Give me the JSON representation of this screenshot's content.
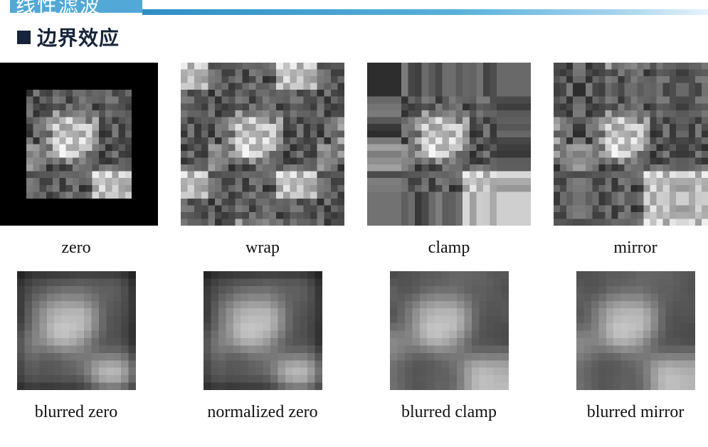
{
  "header": {
    "title": "线性滤波",
    "accent_color": "#52a8d6"
  },
  "section": {
    "title": "边界效应",
    "bullet_color": "#16233a"
  },
  "panels_row1": [
    {
      "caption": "zero",
      "mode": "zero"
    },
    {
      "caption": "wrap",
      "mode": "wrap"
    },
    {
      "caption": "clamp",
      "mode": "clamp"
    },
    {
      "caption": "mirror",
      "mode": "mirror"
    }
  ],
  "panels_row2": [
    {
      "caption": "blurred zero",
      "mode": "blurred-zero"
    },
    {
      "caption": "normalized zero",
      "mode": "normalized-zero"
    },
    {
      "caption": "blurred clamp",
      "mode": "blurred-clamp"
    },
    {
      "caption": "blurred mirror",
      "mode": "blurred-mirror"
    }
  ]
}
